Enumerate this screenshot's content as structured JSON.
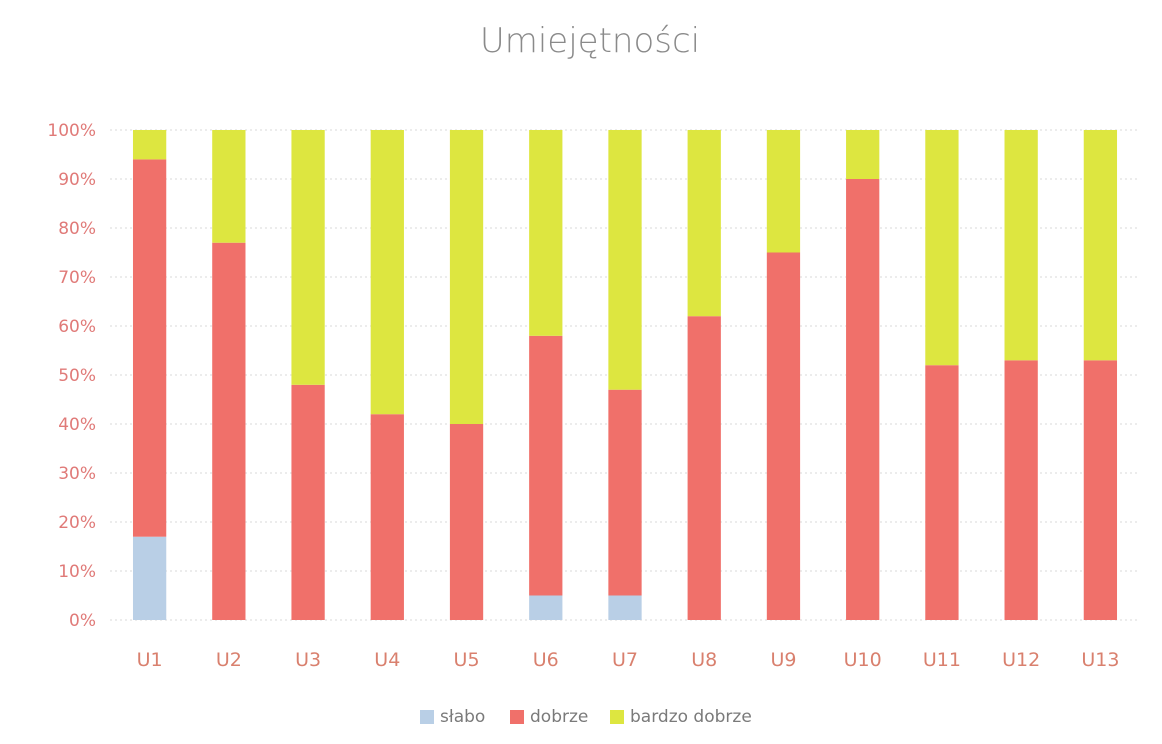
{
  "chart_data": {
    "type": "bar",
    "stacked": true,
    "percent": true,
    "title": "Umiejętności",
    "categories": [
      "U1",
      "U2",
      "U3",
      "U4",
      "U5",
      "U6",
      "U7",
      "U8",
      "U9",
      "U10",
      "U11",
      "U12",
      "U13"
    ],
    "series": [
      {
        "name": "słabo",
        "color": "#b9cfe6",
        "values": [
          17,
          0,
          0,
          0,
          0,
          5,
          5,
          0,
          0,
          0,
          0,
          0,
          0
        ]
      },
      {
        "name": "dobrze",
        "color": "#f0706a",
        "values": [
          77,
          77,
          48,
          42,
          40,
          53,
          42,
          62,
          75,
          90,
          52,
          53,
          53
        ]
      },
      {
        "name": "bardzo dobrze",
        "color": "#dde640",
        "values": [
          6,
          23,
          52,
          58,
          60,
          42,
          53,
          38,
          25,
          10,
          48,
          47,
          47
        ]
      }
    ],
    "ylim": [
      0,
      100
    ],
    "yticks": [
      "0%",
      "10%",
      "20%",
      "30%",
      "40%",
      "50%",
      "60%",
      "70%",
      "80%",
      "90%",
      "100%"
    ],
    "grid": true,
    "legend": "bottom",
    "xlabel": "",
    "ylabel": ""
  }
}
